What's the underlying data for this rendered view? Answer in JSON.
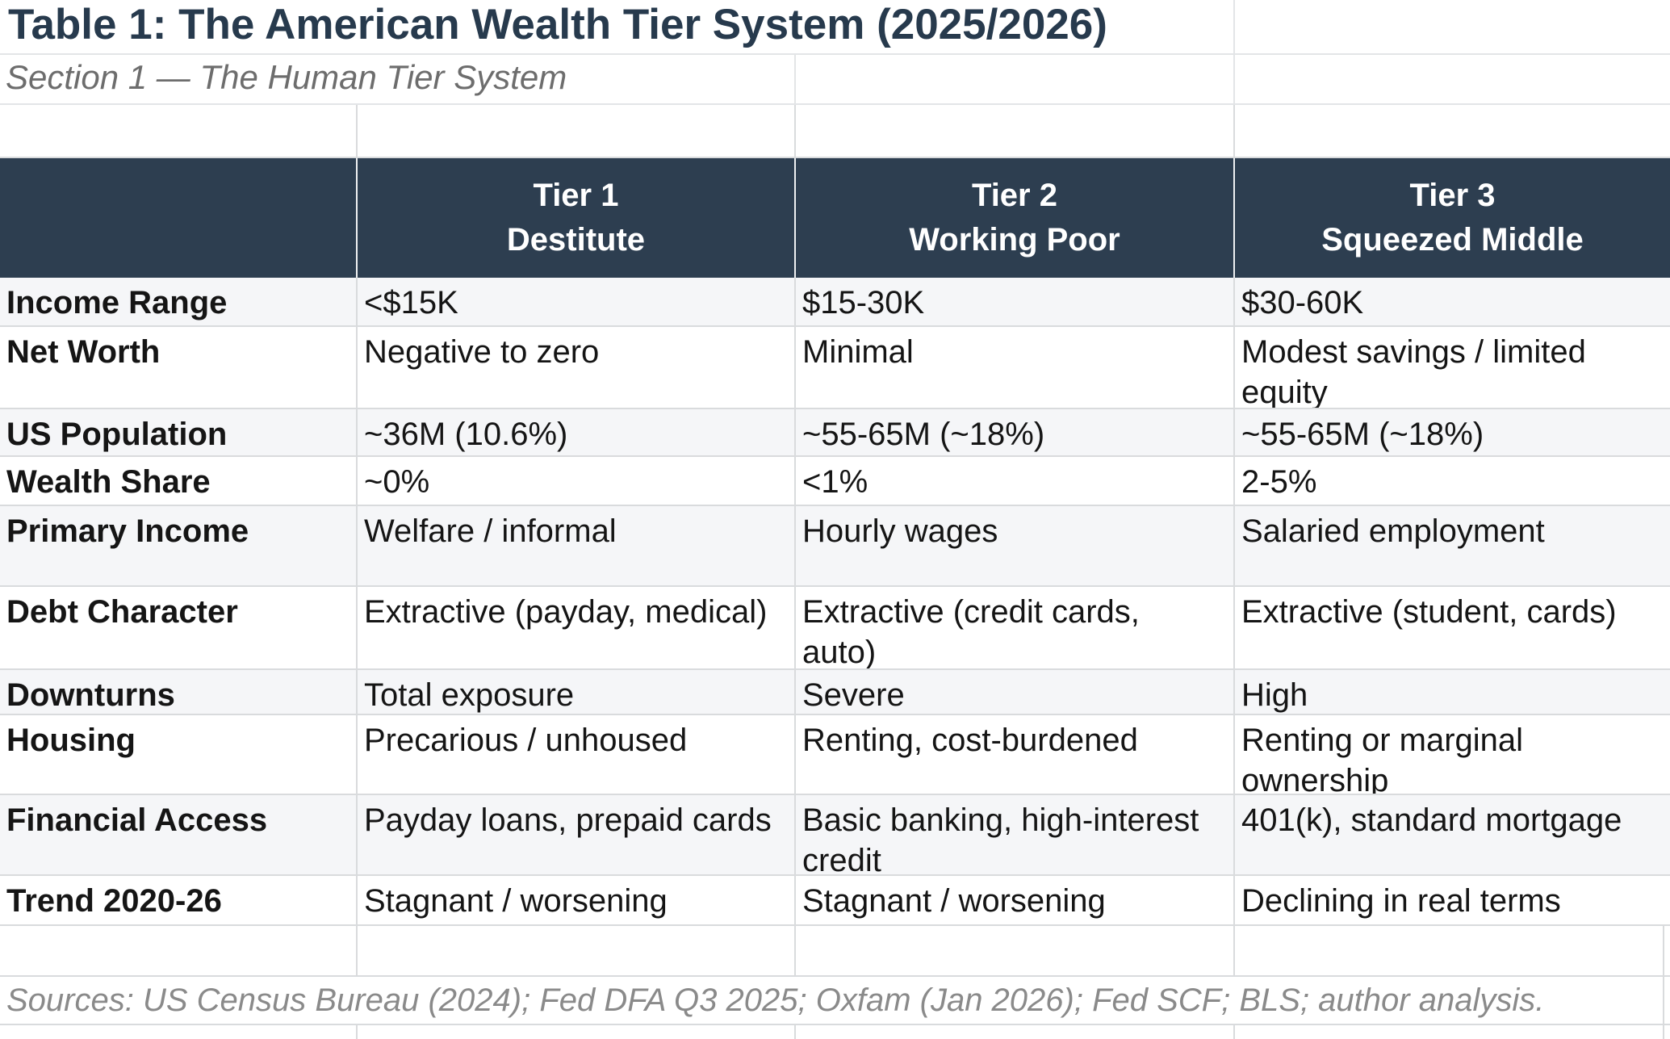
{
  "title": "Table 1: The American Wealth Tier System (2025/2026)",
  "subtitle": "Section 1 — The Human Tier System",
  "sources": "Sources: US Census Bureau (2024); Fed DFA Q3 2025; Oxfam (Jan 2026); Fed SCF; BLS; author analysis.",
  "colors": {
    "header_bg": "#2d3e50",
    "band_bg": "#f5f6f8",
    "gridline": "#d9dbdd",
    "title_text": "#273a4d",
    "subtitle_text": "#6d6d6d",
    "sources_text": "#8a8a8a",
    "header_text": "#ffffff"
  },
  "table": {
    "headers": [
      "",
      "Tier 1\nDestitute",
      "Tier 2\nWorking Poor",
      "Tier 3\nSqueezed Middle"
    ],
    "rows": [
      {
        "label": "Income Range",
        "values": [
          "<$15K",
          "$15-30K",
          "$30-60K"
        ]
      },
      {
        "label": "Net Worth",
        "values": [
          "Negative to zero",
          "Minimal",
          "Modest savings / limited\nequity"
        ]
      },
      {
        "label": "US Population",
        "values": [
          "~36M (10.6%)",
          "~55-65M (~18%)",
          "~55-65M (~18%)"
        ]
      },
      {
        "label": "Wealth Share",
        "values": [
          "~0%",
          "<1%",
          "2-5%"
        ]
      },
      {
        "label": "Primary Income",
        "values": [
          "Welfare / informal",
          "Hourly wages",
          "Salaried employment"
        ]
      },
      {
        "label": "Debt Character",
        "values": [
          "Extractive (payday, medical)",
          "Extractive (credit cards, auto)",
          "Extractive (student, cards)"
        ]
      },
      {
        "label": "Downturns",
        "values": [
          "Total exposure",
          "Severe",
          "High"
        ]
      },
      {
        "label": "Housing",
        "values": [
          "Precarious / unhoused",
          "Renting, cost-burdened",
          "Renting or marginal\nownership"
        ]
      },
      {
        "label": "Financial Access",
        "values": [
          "Payday loans, prepaid cards",
          "Basic banking, high-interest\ncredit",
          "401(k), standard mortgage"
        ]
      },
      {
        "label": "Trend 2020-26",
        "values": [
          "Stagnant / worsening",
          "Stagnant / worsening",
          "Declining in real terms"
        ]
      }
    ]
  }
}
